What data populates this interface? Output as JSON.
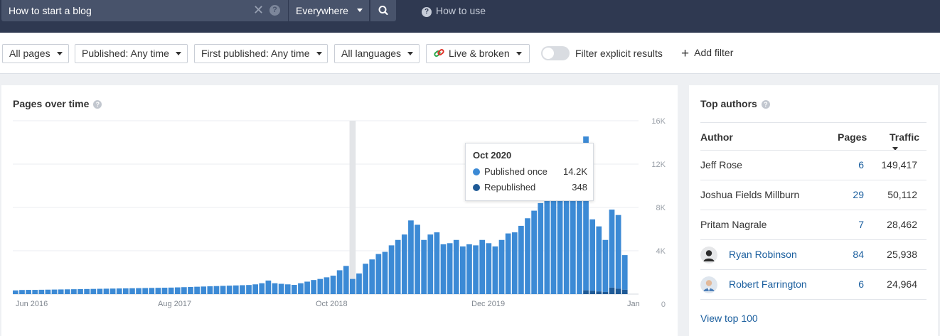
{
  "search": {
    "query": "How to start a blog",
    "scope": "Everywhere",
    "how_to_use": "How to use"
  },
  "filters": {
    "items": [
      {
        "label": "All pages"
      },
      {
        "label": "Published: Any time"
      },
      {
        "label": "First published: Any time"
      },
      {
        "label": "All languages"
      },
      {
        "label": "Live & broken"
      }
    ],
    "explicit_label": "Filter explicit results",
    "add_filter": "Add filter"
  },
  "pages_over_time": {
    "title": "Pages over time",
    "tooltip": {
      "title": "Oct 2020",
      "rows": [
        {
          "label": "Published once",
          "value": "14.2K",
          "color": "#3c8ad5"
        },
        {
          "label": "Republished",
          "value": "348",
          "color": "#1f5a96"
        }
      ]
    }
  },
  "chart_data": {
    "type": "bar",
    "stacked": true,
    "x_tick_labels": [
      "Jun 2016",
      "Aug 2017",
      "Oct 2018",
      "Dec 2019",
      "Jan"
    ],
    "y_tick_labels": [
      "16K",
      "12K",
      "8K",
      "4K",
      "0"
    ],
    "ylim": [
      0,
      16000
    ],
    "grid": true,
    "highlight_index": 52,
    "highlight_color": "#e3e5e8",
    "series": [
      {
        "name": "Published once",
        "color": "#3c8ad5",
        "values": [
          340,
          380,
          390,
          390,
          400,
          410,
          420,
          430,
          440,
          450,
          460,
          470,
          480,
          490,
          500,
          510,
          520,
          530,
          540,
          550,
          560,
          570,
          580,
          590,
          600,
          620,
          640,
          660,
          680,
          700,
          720,
          740,
          760,
          780,
          800,
          820,
          840,
          900,
          1000,
          1250,
          1000,
          950,
          900,
          850,
          1000,
          1150,
          1300,
          1400,
          1550,
          1700,
          2200,
          2600,
          1400,
          1900,
          2800,
          3200,
          3700,
          3900,
          4500,
          5000,
          5500,
          6800,
          6400,
          5000,
          5500,
          5700,
          4600,
          4700,
          5000,
          4400,
          4600,
          4500,
          5000,
          4700,
          4400,
          5000,
          5600,
          5700,
          6300,
          7000,
          7700,
          8400,
          9000,
          9800,
          10500,
          11200,
          12000,
          13000,
          14200,
          6600,
          6000,
          4800,
          7200,
          6800,
          3200
        ]
      },
      {
        "name": "Republished",
        "color": "#1f5a96",
        "values": [
          0,
          0,
          0,
          0,
          0,
          0,
          0,
          0,
          0,
          0,
          0,
          0,
          0,
          0,
          0,
          0,
          0,
          0,
          0,
          0,
          0,
          0,
          0,
          0,
          0,
          0,
          0,
          0,
          0,
          0,
          0,
          0,
          0,
          0,
          0,
          0,
          0,
          0,
          0,
          0,
          0,
          0,
          0,
          0,
          0,
          0,
          0,
          0,
          0,
          0,
          0,
          0,
          0,
          0,
          0,
          0,
          0,
          0,
          0,
          0,
          0,
          0,
          0,
          0,
          0,
          0,
          0,
          0,
          0,
          0,
          0,
          0,
          0,
          0,
          0,
          0,
          0,
          0,
          0,
          0,
          0,
          0,
          0,
          0,
          0,
          0,
          0,
          0,
          348,
          300,
          250,
          200,
          600,
          500,
          400
        ]
      }
    ]
  },
  "top_authors": {
    "title": "Top authors",
    "columns": {
      "author": "Author",
      "pages": "Pages",
      "traffic": "Traffic"
    },
    "rows": [
      {
        "name": "Jeff Rose",
        "pages": "6",
        "traffic": "149,417",
        "linked": false
      },
      {
        "name": "Joshua Fields Millburn",
        "pages": "29",
        "traffic": "50,112",
        "linked": false
      },
      {
        "name": "Pritam Nagrale",
        "pages": "7",
        "traffic": "28,462",
        "linked": false
      },
      {
        "name": "Ryan Robinson",
        "pages": "84",
        "traffic": "25,938",
        "linked": true,
        "avatar": "person-silhouette"
      },
      {
        "name": "Robert Farrington",
        "pages": "6",
        "traffic": "24,964",
        "linked": true,
        "avatar": "person-photo"
      }
    ],
    "view_top": "View top 100"
  }
}
